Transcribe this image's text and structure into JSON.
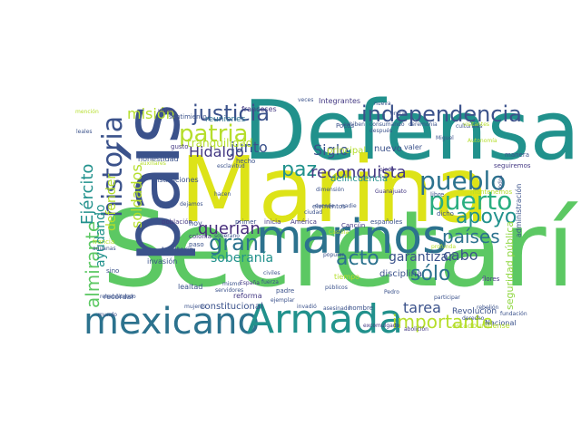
{
  "words": [
    {
      "text": "Secretaría",
      "color": "#5cc863"
    },
    {
      "text": "Defensa",
      "color": "#21918c"
    },
    {
      "text": "Marina",
      "color": "#dde318"
    },
    {
      "text": "país",
      "color": "#3b528b"
    },
    {
      "text": "marinos",
      "color": "#2c728e"
    },
    {
      "text": "mexicano",
      "color": "#2c728e"
    },
    {
      "text": "Armada",
      "color": "#21918c"
    },
    {
      "text": "independencia",
      "color": "#3b528b"
    },
    {
      "text": "historia",
      "color": "#3b528b"
    },
    {
      "text": "pueblo",
      "color": "#2c728e"
    },
    {
      "text": "puerto",
      "color": "#28ae80"
    },
    {
      "text": "apoyo",
      "color": "#21918c"
    },
    {
      "text": "justicia",
      "color": "#3b528b"
    },
    {
      "text": "patria",
      "color": "#b5de2b"
    },
    {
      "text": "Hidalgo",
      "color": "#443983"
    },
    {
      "text": "paz",
      "color": "#21918c"
    },
    {
      "text": "reconquista",
      "color": "#443983"
    },
    {
      "text": "gran",
      "color": "#2c728e"
    },
    {
      "text": "querían",
      "color": "#472d7b"
    },
    {
      "text": "soberanía",
      "color": "#21918c"
    },
    {
      "text": "acto",
      "color": "#2c728e"
    },
    {
      "text": "países",
      "color": "#2c728e"
    },
    {
      "text": "cabo",
      "color": "#3b528b"
    },
    {
      "text": "sólo",
      "color": "#2c728e"
    },
    {
      "text": "tarea",
      "color": "#3b528b"
    },
    {
      "text": "importante",
      "color": "#b5de2b"
    },
    {
      "text": "garantizar",
      "color": "#3b528b"
    },
    {
      "text": "almirante",
      "color": "#5cc863"
    },
    {
      "text": "Ejército",
      "color": "#21918c"
    },
    {
      "text": "soldados",
      "color": "#b5de2b"
    },
    {
      "text": "ayudando",
      "color": "#21918c"
    },
    {
      "text": "defender",
      "color": "#b5de2b"
    },
    {
      "text": "misión",
      "color": "#b5de2b"
    },
    {
      "text": "Siglo",
      "color": "#3b528b"
    },
    {
      "text": "junto",
      "color": "#3b528b"
    },
    {
      "text": "tranquilidad",
      "color": "#b5de2b"
    },
    {
      "text": "reuniones",
      "color": "#2c728e"
    },
    {
      "text": "sentimiento",
      "color": "#3b528b"
    },
    {
      "text": "Integrantes",
      "color": "#443983"
    },
    {
      "text": "franceses",
      "color": "#443983"
    },
    {
      "text": "nuevo",
      "color": "#3b528b"
    },
    {
      "text": "principal",
      "color": "#b5de2b"
    },
    {
      "text": "valer",
      "color": "#3b528b"
    },
    {
      "text": "delincuencia",
      "color": "#21918c"
    },
    {
      "text": "seguridad pública",
      "color": "#90d743"
    },
    {
      "text": "administración",
      "color": "#3b528b"
    },
    {
      "text": "Revolución",
      "color": "#3b528b"
    },
    {
      "text": "Nacional",
      "color": "#3b528b"
    },
    {
      "text": "disciplina",
      "color": "#3b528b"
    },
    {
      "text": "constitucional",
      "color": "#3b528b"
    },
    {
      "text": "invasión",
      "color": "#3b528b"
    },
    {
      "text": "territorio",
      "color": "#3b528b"
    },
    {
      "text": "población",
      "color": "#443983"
    },
    {
      "text": "colonia",
      "color": "#443983"
    },
    {
      "text": "paso",
      "color": "#3b528b"
    },
    {
      "text": "hoy",
      "color": "#3b528b"
    },
    {
      "text": "primer",
      "color": "#3b528b"
    },
    {
      "text": "inicia",
      "color": "#443983"
    },
    {
      "text": "América",
      "color": "#443983"
    },
    {
      "text": "Cancún",
      "color": "#443983"
    },
    {
      "text": "Castilla",
      "color": "#b5de2b"
    },
    {
      "text": "españoles",
      "color": "#3b528b"
    },
    {
      "text": "dimensión",
      "color": "#3b528b"
    },
    {
      "text": "elementos",
      "color": "#3b528b"
    },
    {
      "text": "instituciones",
      "color": "#3b528b"
    },
    {
      "text": "honestidad",
      "color": "#3b528b"
    },
    {
      "text": "gusto",
      "color": "#443983"
    },
    {
      "text": "hecho",
      "color": "#3b528b"
    },
    {
      "text": "esclavitud",
      "color": "#3b528b"
    },
    {
      "text": "recordar",
      "color": "#3b528b"
    },
    {
      "text": "lealtad",
      "color": "#3b528b"
    },
    {
      "text": "reforma",
      "color": "#443983"
    },
    {
      "text": "padre",
      "color": "#3b528b"
    },
    {
      "text": "mismo",
      "color": "#3b528b"
    },
    {
      "text": "España",
      "color": "#443983"
    },
    {
      "text": "invadió",
      "color": "#3b528b"
    },
    {
      "text": "hombre",
      "color": "#3b528b"
    },
    {
      "text": "tiempo",
      "color": "#b5de2b"
    },
    {
      "text": "libre",
      "color": "#3b528b"
    },
    {
      "text": "dicho",
      "color": "#3b528b"
    },
    {
      "text": "manera",
      "color": "#3b528b"
    },
    {
      "text": "todos",
      "color": "#3b528b"
    },
    {
      "text": "seguiremos",
      "color": "#443983"
    },
    {
      "text": "flores",
      "color": "#443983"
    },
    {
      "text": "Pedro",
      "color": "#3b528b"
    },
    {
      "text": "participar",
      "color": "#3b528b"
    },
    {
      "text": "sino",
      "color": "#3b528b"
    },
    {
      "text": "mundo",
      "color": "#3b528b"
    },
    {
      "text": "francia",
      "color": "#b5de2b"
    },
    {
      "text": "aduanas",
      "color": "#3b528b"
    },
    {
      "text": "dejamos",
      "color": "#3b528b"
    },
    {
      "text": "hacen",
      "color": "#3b528b"
    },
    {
      "text": "nadie",
      "color": "#3b528b"
    },
    {
      "text": "Guanajuato",
      "color": "#443983"
    },
    {
      "text": "mantenemos",
      "color": "#b5de2b"
    },
    {
      "text": "estadounidense",
      "color": "#b5de2b"
    },
    {
      "text": "excomulgado",
      "color": "#443983"
    },
    {
      "text": "abolición",
      "color": "#443983"
    },
    {
      "text": "derecho",
      "color": "#3b528b"
    },
    {
      "text": "rebelión",
      "color": "#3b528b"
    },
    {
      "text": "fundación",
      "color": "#3b528b"
    },
    {
      "text": "Pocos",
      "color": "#3b528b"
    },
    {
      "text": "después",
      "color": "#3b528b"
    },
    {
      "text": "culturales",
      "color": "#3b528b"
    },
    {
      "text": "Miguel",
      "color": "#3b528b"
    },
    {
      "text": "visión",
      "color": "#443983"
    },
    {
      "text": "Autonomía",
      "color": "#b5de2b"
    },
    {
      "text": "mención",
      "color": "#b5de2b"
    },
    {
      "text": "leales",
      "color": "#3b528b"
    },
    {
      "text": "auxiliares",
      "color": "#b5de2b"
    },
    {
      "text": "mujeres",
      "color": "#3b528b"
    },
    {
      "text": "asesinado",
      "color": "#3b528b"
    },
    {
      "text": "públicos",
      "color": "#3b528b"
    },
    {
      "text": "servidores",
      "color": "#3b528b"
    },
    {
      "text": "civiles",
      "color": "#3b528b"
    },
    {
      "text": "fuerza",
      "color": "#3b528b"
    },
    {
      "text": "soberano",
      "color": "#3b528b"
    },
    {
      "text": "ciudad",
      "color": "#3b528b"
    },
    {
      "text": "exhiben",
      "color": "#3b528b"
    },
    {
      "text": "consumando",
      "color": "#3b528b"
    },
    {
      "text": "ceremonia",
      "color": "#3b528b"
    },
    {
      "text": "visitantes",
      "color": "#b5de2b"
    },
    {
      "text": "ejemplar",
      "color": "#3b528b"
    },
    {
      "text": "popular",
      "color": "#3b528b"
    },
    {
      "text": "sucede",
      "color": "#3b528b"
    },
    {
      "text": "profunda",
      "color": "#b5de2b"
    },
    {
      "text": "nueva",
      "color": "#3b528b"
    },
    {
      "text": "entra",
      "color": "#3b528b"
    },
    {
      "text": "veces",
      "color": "#3b528b"
    },
    {
      "text": "ojeda",
      "color": "#443983"
    },
    {
      "text": "rehabilitando",
      "color": "#3b528b"
    }
  ]
}
